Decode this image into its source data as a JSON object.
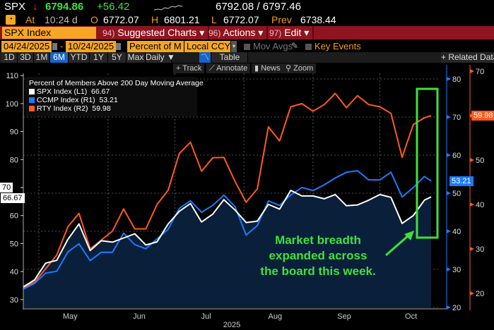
{
  "quote": {
    "ticker": "SPX",
    "direction_icon": "arrow-down-icon",
    "last": "6794.86",
    "change": "+56.42",
    "bid_ask": "6792.08 / 6797.46",
    "at_label": "At",
    "time": "10:24 d",
    "open_label": "O",
    "open": "6772.07",
    "high_label": "H",
    "high": "6801.21",
    "low_label": "L",
    "low": "6772.07",
    "prev_label": "Prev",
    "prev": "6738.44"
  },
  "menubar": {
    "security": "SPX Index",
    "items": [
      {
        "num": "94)",
        "label": "Suggested Charts ▾"
      },
      {
        "num": "96)",
        "label": "Actions ▾"
      },
      {
        "num": "97)",
        "label": "Edit ▾"
      }
    ]
  },
  "settings": {
    "start_date": "04/24/2025",
    "separator": "-",
    "end_date": "10/24/2025",
    "field": "Percent of M",
    "currency": "Local CCY",
    "mov_avgs": "Mov Avgs",
    "key_events": "Key Events"
  },
  "periods": {
    "items": [
      "1D",
      "3D",
      "1M",
      "6M",
      "YTD",
      "1Y",
      "5Y",
      "Max"
    ],
    "selected": "6M",
    "frequency": "Daily ▼",
    "table": "Table",
    "related": "+ Related Data"
  },
  "tools": [
    "+ Track",
    "⟋ Annotate",
    "▮ News",
    "⚲ Zoom"
  ],
  "annotation": {
    "lines": [
      "Market breadth",
      "expanded across",
      "the board this week."
    ],
    "color": "#3fe13b"
  },
  "colors": {
    "spx": "#ffffff",
    "ccmp": "#1a7cff",
    "rty": "#ff5a1f",
    "fill": "#0a1f3a",
    "menubar": "#8e1520",
    "accent": "#f5a623"
  },
  "chart_data": {
    "type": "line",
    "title": "Percent of Members Above 200 Day Moving Average",
    "x": [
      "2025-04-24",
      "2025-04-29",
      "2025-05-04",
      "2025-05-09",
      "2025-05-14",
      "2025-05-19",
      "2025-05-24",
      "2025-05-29",
      "2025-06-03",
      "2025-06-08",
      "2025-06-13",
      "2025-06-18",
      "2025-06-23",
      "2025-06-28",
      "2025-07-03",
      "2025-07-08",
      "2025-07-13",
      "2025-07-18",
      "2025-07-23",
      "2025-07-28",
      "2025-08-02",
      "2025-08-07",
      "2025-08-12",
      "2025-08-17",
      "2025-08-22",
      "2025-08-27",
      "2025-09-01",
      "2025-09-06",
      "2025-09-11",
      "2025-09-16",
      "2025-09-21",
      "2025-09-26",
      "2025-10-01",
      "2025-10-06",
      "2025-10-11",
      "2025-10-16",
      "2025-10-21",
      "2025-10-24"
    ],
    "series": [
      {
        "name": "SPX Index (L1)",
        "last": "66.67",
        "axis": "L1",
        "values": [
          34.5,
          37,
          43,
          44,
          51.5,
          57,
          47.5,
          51,
          50.5,
          52,
          53.5,
          49.5,
          50.6,
          57,
          61.5,
          64.3,
          57.7,
          60.5,
          65.7,
          62,
          57.5,
          58,
          64,
          62.3,
          69,
          67,
          67,
          66,
          67.5,
          63.5,
          63.8,
          65.5,
          67.5,
          66.5,
          57.2,
          60,
          65.5,
          66.67
        ]
      },
      {
        "name": "CCMP Index (R1)",
        "last": "53.21",
        "axis": "R1",
        "values": [
          24.8,
          26.3,
          29,
          29.5,
          34.6,
          36.7,
          32.3,
          34.5,
          34.5,
          39.5,
          36.5,
          35.4,
          38,
          40.5,
          46,
          48,
          45,
          46.8,
          49.5,
          46.5,
          39,
          41.5,
          48,
          46.8,
          49.5,
          51.5,
          50.7,
          52.2,
          54,
          55.5,
          55.9,
          53.5,
          53.5,
          55.5,
          49,
          51.5,
          54.4,
          53.21
        ]
      },
      {
        "name": "RTY Index (R2)",
        "last": "59.98",
        "axis": "R2",
        "values": [
          21.3,
          22.5,
          25.5,
          28.6,
          35,
          38,
          30,
          32,
          34,
          39,
          34.5,
          34.5,
          40,
          43.2,
          51.5,
          54,
          47.5,
          50.5,
          50.6,
          45.2,
          40.5,
          43.5,
          57.5,
          54.3,
          62,
          62.7,
          61,
          62.5,
          65,
          61.8,
          64.5,
          62.5,
          62,
          60.5,
          50.6,
          58,
          59.5,
          59.98
        ]
      }
    ],
    "axes": {
      "L1": {
        "ticks": [
          30,
          40,
          50,
          60,
          70,
          80,
          90,
          100,
          110
        ]
      },
      "R1": {
        "ticks": [
          20,
          30,
          40,
          50,
          60,
          70,
          80
        ]
      },
      "R2": {
        "ticks": [
          20,
          30,
          40,
          50,
          60,
          70
        ]
      }
    },
    "left_marker": "70",
    "x_tick_labels": [
      "May",
      "Jun",
      "Jul",
      "Aug",
      "Sep",
      "Oct"
    ],
    "x_year_label": "2025",
    "grid": true,
    "legend_placement": "top-left"
  }
}
